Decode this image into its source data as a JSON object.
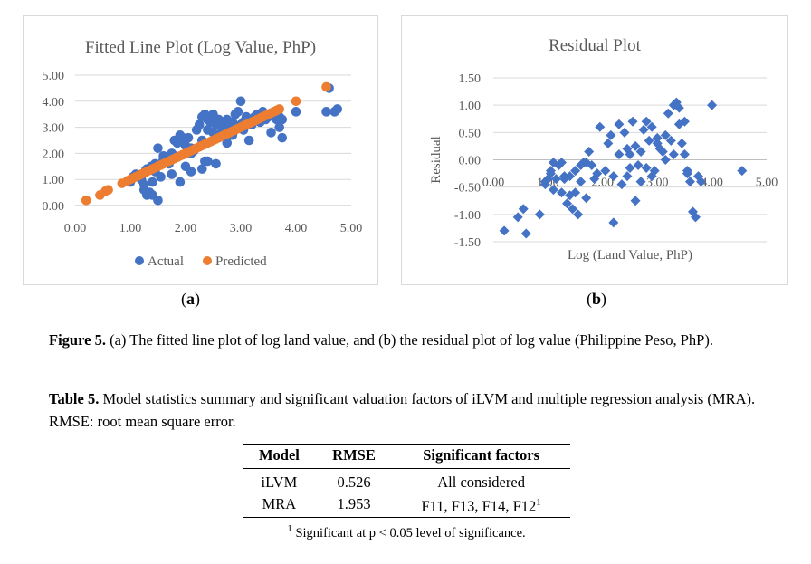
{
  "chart_data": [
    {
      "type": "scatter",
      "title": "Fitted Line Plot (Log Value, PhP)",
      "xlim": [
        0,
        5
      ],
      "ylim": [
        0,
        5
      ],
      "xticks": [
        "0.00",
        "1.00",
        "2.00",
        "3.00",
        "4.00",
        "5.00"
      ],
      "yticks": [
        "0.00",
        "1.00",
        "2.00",
        "3.00",
        "4.00",
        "5.00"
      ],
      "grid": "horizontal",
      "legend": "bottom",
      "series": [
        {
          "name": "Actual",
          "color": "#4472c4",
          "x": [
            1.0,
            1.05,
            1.1,
            1.2,
            1.25,
            1.28,
            1.3,
            1.35,
            1.38,
            1.4,
            1.45,
            1.5,
            1.5,
            1.55,
            1.6,
            1.65,
            1.7,
            1.75,
            1.8,
            1.85,
            1.9,
            1.95,
            2.0,
            2.0,
            2.05,
            2.1,
            2.1,
            2.2,
            2.25,
            2.3,
            2.3,
            2.35,
            2.4,
            2.4,
            2.45,
            2.5,
            2.5,
            2.55,
            2.6,
            2.6,
            2.65,
            2.7,
            2.7,
            2.75,
            2.8,
            2.8,
            2.85,
            2.9,
            2.9,
            2.95,
            3.0,
            3.0,
            3.05,
            3.1,
            3.15,
            3.2,
            3.25,
            3.3,
            3.35,
            3.4,
            3.45,
            3.5,
            3.55,
            3.6,
            3.65,
            3.7,
            3.7,
            3.75,
            2.95,
            1.9,
            1.6,
            2.4,
            2.3,
            1.3,
            1.45,
            1.55,
            1.8,
            2.0,
            2.15,
            2.35,
            2.55,
            2.75,
            2.85,
            3.05,
            3.15,
            3.4,
            3.75,
            4.0,
            4.55,
            4.7,
            4.75,
            4.6,
            1.4,
            1.25,
            1.75,
            2.1,
            2.6
          ],
          "y": [
            0.9,
            1.1,
            1.2,
            1.0,
            0.8,
            1.35,
            1.4,
            0.5,
            1.5,
            0.4,
            1.6,
            0.2,
            2.2,
            1.6,
            1.8,
            1.7,
            1.6,
            2.0,
            2.5,
            2.4,
            2.7,
            2.6,
            2.3,
            1.5,
            2.6,
            1.3,
            2.2,
            2.9,
            3.1,
            3.4,
            2.5,
            3.5,
            2.9,
            3.3,
            3.2,
            3.5,
            2.8,
            3.1,
            2.6,
            3.3,
            3.0,
            2.9,
            3.2,
            3.3,
            3.1,
            2.7,
            3.2,
            2.9,
            3.5,
            3.0,
            3.1,
            4.0,
            2.9,
            3.4,
            3.3,
            3.1,
            3.4,
            3.5,
            3.2,
            3.6,
            3.3,
            3.4,
            2.8,
            3.5,
            3.3,
            3.4,
            3.0,
            2.6,
            3.6,
            0.9,
            1.9,
            1.7,
            1.4,
            0.4,
            1.3,
            1.1,
            1.9,
            2.3,
            2.1,
            1.7,
            1.6,
            2.4,
            2.7,
            3.2,
            2.5,
            3.5,
            3.3,
            3.6,
            3.6,
            3.6,
            3.7,
            4.5,
            0.9,
            0.6,
            1.2,
            2.0,
            2.7
          ]
        },
        {
          "name": "Predicted",
          "color": "#ed7d31",
          "x": [
            0.2,
            0.45,
            0.55,
            0.6,
            0.85,
            0.95,
            1.0,
            1.05,
            1.1,
            1.15,
            1.2,
            1.25,
            1.3,
            1.35,
            1.4,
            1.45,
            1.5,
            1.55,
            1.6,
            1.65,
            1.7,
            1.75,
            1.8,
            1.85,
            1.9,
            1.95,
            2.0,
            2.05,
            2.1,
            2.15,
            2.2,
            2.25,
            2.3,
            2.35,
            2.4,
            2.45,
            2.5,
            2.55,
            2.6,
            2.65,
            2.7,
            2.75,
            2.8,
            2.85,
            2.9,
            2.95,
            3.0,
            3.05,
            3.1,
            3.15,
            3.2,
            3.25,
            3.3,
            3.35,
            3.4,
            3.45,
            3.5,
            3.55,
            3.6,
            3.65,
            3.7,
            4.0,
            4.55
          ],
          "y": [
            0.2,
            0.4,
            0.55,
            0.6,
            0.85,
            0.95,
            1.0,
            1.05,
            1.1,
            1.15,
            1.2,
            1.25,
            1.3,
            1.35,
            1.4,
            1.45,
            1.5,
            1.55,
            1.6,
            1.65,
            1.7,
            1.75,
            1.8,
            1.85,
            1.9,
            1.95,
            2.0,
            2.05,
            2.1,
            2.15,
            2.2,
            2.25,
            2.3,
            2.35,
            2.4,
            2.45,
            2.5,
            2.55,
            2.6,
            2.65,
            2.7,
            2.75,
            2.8,
            2.85,
            2.9,
            2.95,
            3.0,
            3.05,
            3.1,
            3.15,
            3.2,
            3.25,
            3.3,
            3.35,
            3.4,
            3.45,
            3.5,
            3.55,
            3.6,
            3.65,
            3.7,
            4.0,
            4.55
          ]
        }
      ]
    },
    {
      "type": "scatter",
      "title": "Residual Plot",
      "xlabel": "Log (Land Value, PhP)",
      "ylabel": "Residual",
      "xlim": [
        0,
        5
      ],
      "ylim": [
        -1.5,
        1.5
      ],
      "xticks": [
        "0.00",
        "1.00",
        "2.00",
        "3.00",
        "4.00",
        "5.00"
      ],
      "yticks": [
        "1.50",
        "1.00",
        "0.50",
        "0.00",
        "-0.50",
        "-1.00",
        "-1.50"
      ],
      "grid": "horizontal",
      "series": [
        {
          "name": "",
          "color": "#4472c4",
          "marker": "diamond",
          "x": [
            0.2,
            0.45,
            0.55,
            0.6,
            0.85,
            0.95,
            1.0,
            1.05,
            1.1,
            1.15,
            1.2,
            1.25,
            1.3,
            1.35,
            1.4,
            1.45,
            1.5,
            1.55,
            1.6,
            1.65,
            1.7,
            1.75,
            1.8,
            1.85,
            1.95,
            2.05,
            2.1,
            2.15,
            2.2,
            2.3,
            2.35,
            2.4,
            2.45,
            2.5,
            2.55,
            2.6,
            2.65,
            2.7,
            2.75,
            2.8,
            2.85,
            2.9,
            2.95,
            3.0,
            3.05,
            3.1,
            3.15,
            3.2,
            3.25,
            3.3,
            3.35,
            3.4,
            3.45,
            3.5,
            3.55,
            3.6,
            3.65,
            3.7,
            4.0,
            4.55,
            3.75,
            3.8,
            2.5,
            2.9,
            1.3,
            1.5,
            1.1,
            2.7,
            3.3,
            3.55,
            2.2,
            1.6,
            1.4,
            3.0,
            0.95,
            1.25,
            3.15,
            3.5,
            2.3,
            2.8,
            1.05,
            1.7,
            2.6,
            3.4,
            1.9,
            2.45
          ],
          "y": [
            -1.3,
            -1.05,
            -0.9,
            -1.35,
            -1.0,
            -0.4,
            -0.35,
            -0.2,
            -0.55,
            -0.35,
            -0.1,
            -0.05,
            -0.3,
            -0.8,
            -0.65,
            -0.9,
            -0.2,
            -1.0,
            -0.4,
            -0.05,
            -0.7,
            0.15,
            -0.1,
            -0.35,
            0.6,
            -0.2,
            0.3,
            0.45,
            -0.3,
            0.65,
            -0.45,
            0.5,
            -0.3,
            0.1,
            0.7,
            0.25,
            -0.1,
            0.15,
            0.55,
            0.7,
            0.35,
            0.6,
            -0.2,
            0.3,
            0.2,
            0.15,
            0.45,
            0.85,
            0.35,
            1.0,
            1.05,
            0.95,
            0.3,
            0.7,
            -0.25,
            -0.4,
            -0.95,
            -1.05,
            1.0,
            -0.2,
            -0.3,
            -0.4,
            -0.15,
            -0.3,
            -0.35,
            -0.6,
            -0.05,
            -0.4,
            0.1,
            -0.2,
            -1.15,
            -0.1,
            -0.3,
            0.4,
            -0.45,
            -0.6,
            0.0,
            0.1,
            0.1,
            -0.15,
            -0.25,
            -0.05,
            -0.75,
            0.65,
            -0.25,
            0.2
          ]
        }
      ]
    }
  ],
  "panel_a": {
    "title": "Fitted Line Plot (Log Value, PhP)",
    "label": "(a)",
    "legend_actual": "Actual",
    "legend_predicted": "Predicted"
  },
  "panel_b": {
    "title": "Residual Plot",
    "label": "(b)",
    "xlabel": "Log (Land Value, PhP)",
    "ylabel": "Residual"
  },
  "figure_caption": {
    "label": "Figure 5.",
    "text": " (a) The fitted line plot of log land value, and (b) the residual plot of log value (Philippine Peso, PhP)."
  },
  "table_caption": {
    "label": "Table 5.",
    "text": " Model statistics summary and significant valuation factors of iLVM and multiple regression analysis (MRA). RMSE: root mean square error."
  },
  "table": {
    "headers": [
      "Model",
      "RMSE",
      "Significant factors"
    ],
    "rows": [
      [
        "iLVM",
        "0.526",
        "All considered"
      ],
      [
        "MRA",
        "1.953",
        "F11, F13, F14, F12"
      ]
    ],
    "footnote_mark": "1",
    "footnote": "Significant at p < 0.05 level of significance."
  }
}
